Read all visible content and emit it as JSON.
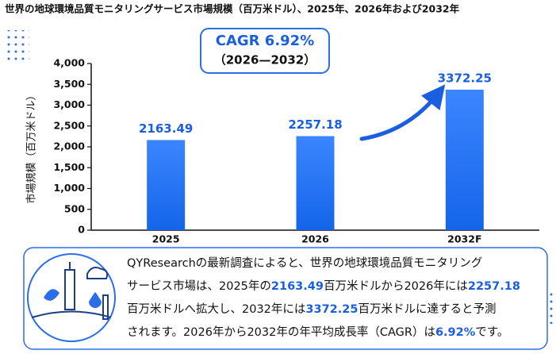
{
  "chart_data": {
    "type": "bar",
    "title": "世界の地球環境品質モニタリングサービス市場規模（百万米ドル）、2025年、2026年および2032年",
    "cagr": "CAGR 6.92%",
    "cagr_period": "（2026—2032）",
    "y_label": "市場規模（百万米ドル）",
    "categories": [
      "2025",
      "2026",
      "2032F"
    ],
    "values": [
      2163.49,
      2257.18,
      3372.25
    ],
    "color": "#1f6ff2",
    "ylim": [
      0,
      4000
    ],
    "yticks": [
      0,
      {
        "value": 500,
        "label": "500"
      },
      {
        "value": 1000,
        "label": "1,000"
      },
      {
        "value": 1500,
        "label": "1,500"
      },
      {
        "value": 2000,
        "label": "2,000"
      },
      {
        "value": 2500,
        "label": "2,500"
      },
      {
        "value": 3000,
        "label": "3,000"
      },
      {
        "value": 3500,
        "label": "3,500"
      },
      {
        "value": 4000,
        "label": "4,000"
      }
    ],
    "grid": false
  },
  "summary": {
    "lines": [
      [
        "QYResearchの最新調査によると、世界の地球環境品質モニタリング"
      ],
      [
        "サービス市場は、2025年の",
        "2163.49",
        "百万米ドルから2026年には",
        "2257.18"
      ],
      [
        "百万米ドルへ拡大し、2032年には",
        "3372.25",
        "百万米ドルに達すると予測"
      ],
      [
        "されます。2026年から2032年の年平均成長率（CAGR）は",
        "6.92%",
        "です。"
      ]
    ]
  }
}
